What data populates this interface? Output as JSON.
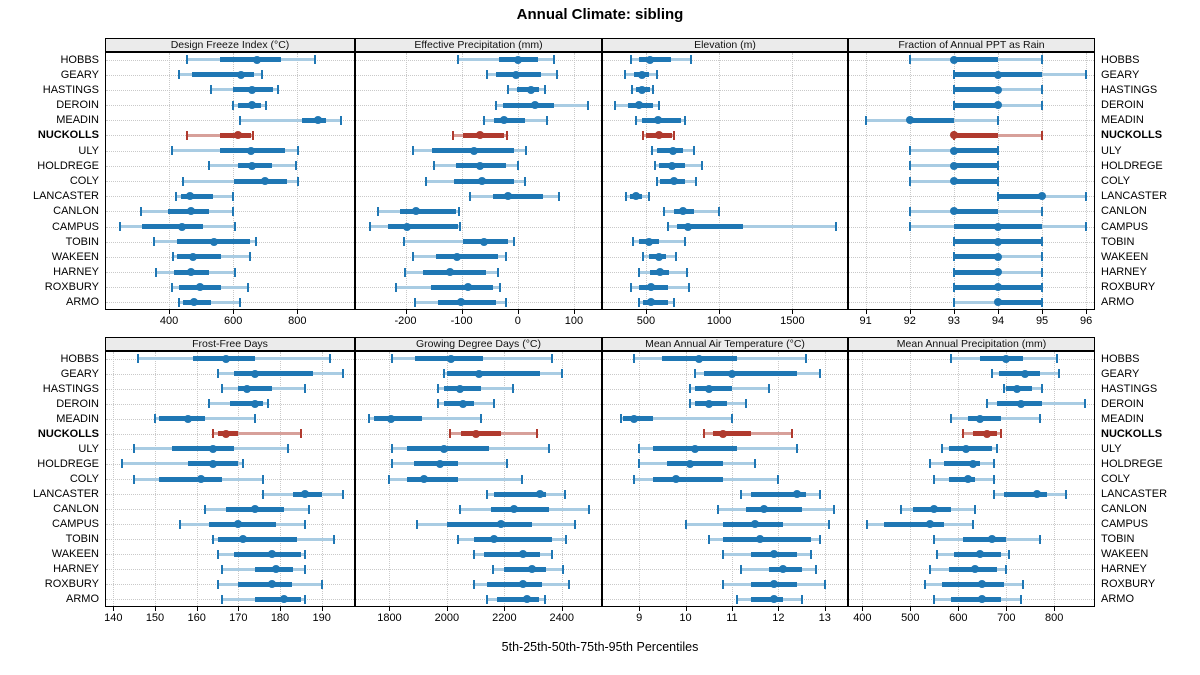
{
  "title": "Annual Climate: sibling",
  "xlabel": "5th-25th-50th-75th-95th Percentiles",
  "colors": {
    "blue": "#1f77b4",
    "blue_light": "#a9cce3",
    "red": "#b03a2e",
    "red_light": "#d7a09a",
    "header_bg": "#ebebeb",
    "grid": "#c9c9c9",
    "border": "#000000"
  },
  "chart_data": {
    "type": "scatter",
    "variant": "percentile-interval-dotplot",
    "percentile_labels": [
      "5th",
      "25th",
      "50th",
      "75th",
      "95th"
    ],
    "legend_position": "none",
    "grid": "dotted",
    "stations": [
      "HOBBS",
      "GEARY",
      "HASTINGS",
      "DEROIN",
      "MEADIN",
      "NUCKOLLS",
      "ULY",
      "HOLDREGE",
      "COLY",
      "LANCASTER",
      "CANLON",
      "CAMPUS",
      "TOBIN",
      "WAKEEN",
      "HARNEY",
      "ROXBURY",
      "ARMO"
    ],
    "highlight_station": "NUCKOLLS",
    "panels": [
      {
        "title": "Design Freeze Index (°C)",
        "xlim": [
          200,
          980
        ],
        "ticks": [
          400,
          600,
          800
        ],
        "values": [
          [
            455,
            560,
            675,
            750,
            855
          ],
          [
            430,
            470,
            625,
            665,
            690
          ],
          [
            530,
            600,
            660,
            725,
            740
          ],
          [
            600,
            615,
            658,
            687,
            703
          ],
          [
            620,
            815,
            863,
            890,
            935
          ],
          [
            455,
            560,
            615,
            655,
            662
          ],
          [
            410,
            558,
            656,
            763,
            803
          ],
          [
            523,
            614,
            660,
            721,
            795
          ],
          [
            442,
            603,
            698,
            768,
            803
          ],
          [
            421,
            437,
            465,
            537,
            600
          ],
          [
            311,
            395,
            468,
            526,
            598
          ],
          [
            247,
            316,
            440,
            505,
            605
          ],
          [
            353,
            424,
            540,
            651,
            672
          ],
          [
            411,
            426,
            474,
            563,
            653
          ],
          [
            360,
            416,
            468,
            526,
            605
          ],
          [
            408,
            432,
            495,
            563,
            647
          ],
          [
            432,
            444,
            479,
            532,
            621
          ]
        ]
      },
      {
        "title": "Effective Precipitation (mm)",
        "xlim": [
          -290,
          150
        ],
        "ticks": [
          -200,
          -100,
          0,
          100
        ],
        "values": [
          [
            -107,
            -34,
            0,
            36,
            64
          ],
          [
            -55,
            -39,
            -4,
            42,
            70
          ],
          [
            -17,
            -2,
            23,
            37,
            48
          ],
          [
            -39,
            -26,
            30,
            65,
            125
          ],
          [
            -60,
            -42,
            -24,
            12,
            52
          ],
          [
            -115,
            -97,
            -68,
            -25,
            -20
          ],
          [
            -187,
            -152,
            -78,
            -6,
            15
          ],
          [
            -149,
            -110,
            -67,
            -21,
            1
          ],
          [
            -164,
            -113,
            -64,
            -6,
            13
          ],
          [
            -86,
            -45,
            -17,
            45,
            74
          ],
          [
            -249,
            -210,
            -181,
            -110,
            -105
          ],
          [
            -263,
            -232,
            -198,
            -106,
            -103
          ],
          [
            -202,
            -98,
            -60,
            -18,
            -7
          ],
          [
            -187,
            -146,
            -108,
            -36,
            -21
          ],
          [
            -201,
            -168,
            -121,
            -57,
            -35
          ],
          [
            -217,
            -155,
            -88,
            -45,
            -31
          ],
          [
            -183,
            -143,
            -101,
            -39,
            -21
          ]
        ]
      },
      {
        "title": "Elevation (m)",
        "xlim": [
          200,
          1880
        ],
        "ticks": [
          500,
          1000,
          1500
        ],
        "values": [
          [
            395,
            455,
            530,
            670,
            805
          ],
          [
            360,
            420,
            470,
            520,
            575
          ],
          [
            405,
            435,
            475,
            525,
            550
          ],
          [
            290,
            375,
            450,
            545,
            590
          ],
          [
            435,
            475,
            580,
            740,
            765
          ],
          [
            477,
            500,
            588,
            675,
            690
          ],
          [
            540,
            575,
            685,
            755,
            825
          ],
          [
            560,
            590,
            680,
            765,
            885
          ],
          [
            575,
            595,
            690,
            770,
            840
          ],
          [
            365,
            390,
            430,
            470,
            520
          ],
          [
            620,
            690,
            755,
            825,
            1000
          ],
          [
            650,
            710,
            790,
            1165,
            1800
          ],
          [
            410,
            450,
            520,
            590,
            765
          ],
          [
            480,
            520,
            590,
            640,
            705
          ],
          [
            450,
            525,
            595,
            655,
            780
          ],
          [
            395,
            450,
            535,
            650,
            795
          ],
          [
            450,
            480,
            535,
            650,
            695
          ]
        ]
      },
      {
        "title": "Fraction of Annual PPT as Rain",
        "xlim": [
          90.6,
          96.2
        ],
        "ticks": [
          91,
          92,
          93,
          94,
          95,
          96
        ],
        "values": [
          [
            92,
            93,
            93,
            94,
            95
          ],
          [
            93,
            93,
            94,
            95,
            96
          ],
          [
            93,
            93,
            94,
            94,
            95
          ],
          [
            93,
            93,
            94,
            94,
            95
          ],
          [
            91,
            92,
            92,
            93,
            94
          ],
          [
            93,
            93,
            93,
            94,
            95
          ],
          [
            92,
            93,
            93,
            94,
            94
          ],
          [
            92,
            93,
            93,
            94,
            94
          ],
          [
            92,
            93,
            93,
            94,
            94
          ],
          [
            94,
            94,
            95,
            95,
            96
          ],
          [
            92,
            93,
            93,
            94,
            95
          ],
          [
            92,
            93,
            94,
            95,
            96
          ],
          [
            93,
            93,
            94,
            95,
            95
          ],
          [
            93,
            93,
            94,
            94,
            95
          ],
          [
            93,
            93,
            94,
            94,
            95
          ],
          [
            93,
            93,
            94,
            95,
            95
          ],
          [
            93,
            94,
            94,
            95,
            95
          ]
        ]
      },
      {
        "title": "Frost-Free Days",
        "xlim": [
          138,
          198
        ],
        "ticks": [
          140,
          150,
          160,
          170,
          180,
          190
        ],
        "values": [
          [
            146,
            159,
            167,
            174,
            192
          ],
          [
            165,
            169,
            174,
            188,
            195
          ],
          [
            166,
            170,
            172,
            178,
            186
          ],
          [
            163,
            168,
            174,
            176,
            177
          ],
          [
            150,
            151,
            158,
            162,
            174
          ],
          [
            164,
            165,
            167,
            170,
            185
          ],
          [
            145,
            154,
            164,
            169,
            182
          ],
          [
            142,
            158,
            164,
            170,
            171
          ],
          [
            145,
            151,
            161,
            166,
            176
          ],
          [
            176,
            183,
            186,
            190,
            195
          ],
          [
            162,
            167,
            174,
            181,
            187
          ],
          [
            156,
            163,
            170,
            179,
            186
          ],
          [
            164,
            165,
            171,
            184,
            193
          ],
          [
            165,
            169,
            178,
            185,
            186
          ],
          [
            166,
            174,
            179,
            183,
            186
          ],
          [
            165,
            170,
            178,
            183,
            190
          ],
          [
            166,
            174,
            181,
            185,
            186
          ]
        ]
      },
      {
        "title": "Growing Degree Days (°C)",
        "xlim": [
          1680,
          2540
        ],
        "ticks": [
          1800,
          2000,
          2200,
          2400
        ],
        "values": [
          [
            1810,
            1890,
            2015,
            2125,
            2365
          ],
          [
            1990,
            2000,
            2110,
            2325,
            2400
          ],
          [
            1970,
            1990,
            2045,
            2120,
            2230
          ],
          [
            1970,
            1990,
            2055,
            2095,
            2165
          ],
          [
            1730,
            1745,
            1805,
            1915,
            2120
          ],
          [
            2010,
            2050,
            2100,
            2190,
            2315
          ],
          [
            1810,
            1860,
            1990,
            2145,
            2355
          ],
          [
            1810,
            1885,
            1975,
            2040,
            2210
          ],
          [
            1800,
            1860,
            1920,
            2040,
            2260
          ],
          [
            2140,
            2165,
            2325,
            2345,
            2410
          ],
          [
            2045,
            2155,
            2235,
            2355,
            2495
          ],
          [
            1895,
            2000,
            2190,
            2295,
            2445
          ],
          [
            2040,
            2095,
            2165,
            2365,
            2415
          ],
          [
            2095,
            2130,
            2265,
            2325,
            2365
          ],
          [
            2160,
            2200,
            2295,
            2345,
            2405
          ],
          [
            2095,
            2140,
            2265,
            2330,
            2425
          ],
          [
            2140,
            2175,
            2280,
            2320,
            2340
          ]
        ]
      },
      {
        "title": "Mean Annual Air Temperature (°C)",
        "xlim": [
          8.2,
          13.5
        ],
        "ticks": [
          9,
          10,
          11,
          12,
          13
        ],
        "values": [
          [
            8.9,
            9.5,
            10.3,
            11.1,
            12.6
          ],
          [
            10.2,
            10.4,
            11.0,
            12.4,
            12.9
          ],
          [
            10.1,
            10.2,
            10.5,
            11.0,
            11.8
          ],
          [
            10.1,
            10.2,
            10.5,
            10.9,
            11.3
          ],
          [
            8.6,
            8.65,
            8.9,
            9.3,
            11.0
          ],
          [
            10.4,
            10.6,
            10.8,
            11.4,
            12.3
          ],
          [
            9.0,
            9.3,
            10.2,
            11.1,
            12.4
          ],
          [
            9.0,
            9.6,
            10.1,
            10.8,
            11.5
          ],
          [
            8.9,
            9.3,
            9.8,
            10.8,
            12.0
          ],
          [
            11.2,
            11.4,
            12.4,
            12.6,
            12.9
          ],
          [
            10.7,
            11.3,
            11.7,
            12.5,
            13.2
          ],
          [
            10.0,
            10.8,
            11.5,
            12.1,
            13.1
          ],
          [
            10.5,
            10.8,
            11.6,
            12.7,
            12.9
          ],
          [
            10.8,
            11.4,
            11.9,
            12.4,
            12.7
          ],
          [
            11.2,
            11.8,
            12.1,
            12.5,
            12.8
          ],
          [
            10.8,
            11.4,
            11.9,
            12.4,
            13.0
          ],
          [
            11.1,
            11.4,
            11.9,
            12.1,
            12.5
          ]
        ]
      },
      {
        "title": "Mean Annual Precipitation (mm)",
        "xlim": [
          370,
          885
        ],
        "ticks": [
          400,
          500,
          600,
          700,
          800
        ],
        "values": [
          [
            585,
            645,
            700,
            735,
            805
          ],
          [
            670,
            685,
            740,
            770,
            810
          ],
          [
            695,
            700,
            723,
            753,
            775
          ],
          [
            660,
            680,
            730,
            775,
            865
          ],
          [
            585,
            620,
            645,
            690,
            770
          ],
          [
            610,
            630,
            660,
            680,
            690
          ],
          [
            565,
            580,
            615,
            670,
            680
          ],
          [
            540,
            570,
            630,
            645,
            675
          ],
          [
            550,
            580,
            620,
            635,
            675
          ],
          [
            675,
            695,
            765,
            785,
            825
          ],
          [
            480,
            505,
            550,
            585,
            635
          ],
          [
            410,
            445,
            540,
            570,
            630
          ],
          [
            550,
            610,
            670,
            700,
            770
          ],
          [
            555,
            590,
            645,
            690,
            705
          ],
          [
            540,
            580,
            635,
            680,
            700
          ],
          [
            530,
            565,
            650,
            695,
            735
          ],
          [
            550,
            585,
            650,
            690,
            730
          ]
        ]
      }
    ]
  }
}
